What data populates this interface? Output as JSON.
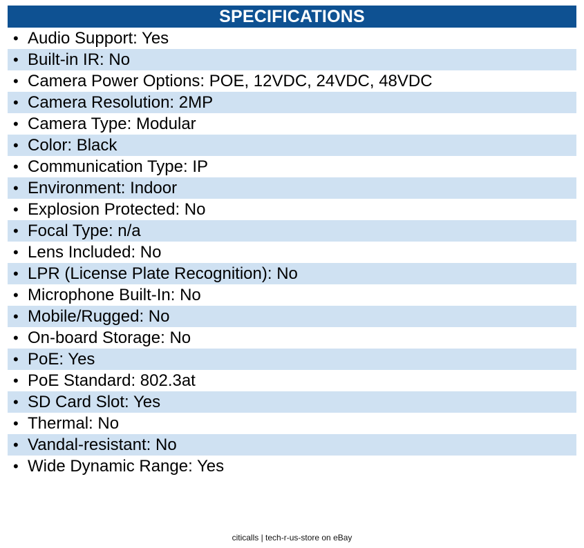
{
  "header": {
    "title": "SPECIFICATIONS"
  },
  "colors": {
    "header_bg": "#0e5192",
    "row_shade": "#cfe1f2",
    "row_plain": "#ffffff"
  },
  "specs": [
    "Audio Support: Yes",
    "Built-in IR: No",
    "Camera Power Options: POE, 12VDC, 24VDC, 48VDC",
    "Camera Resolution: 2MP",
    "Camera Type: Modular",
    "Color: Black",
    "Communication Type: IP",
    "Environment: Indoor",
    "Explosion Protected: No",
    "Focal Type: n/a",
    "Lens Included: No",
    "LPR (License Plate Recognition): No",
    "Microphone Built-In: No",
    "Mobile/Rugged: No",
    "On-board Storage: No",
    "PoE: Yes",
    "PoE Standard: 802.3at",
    "SD Card Slot: Yes",
    "Thermal: No",
    "Vandal-resistant: No",
    "Wide Dynamic Range: Yes"
  ],
  "bullet_glyph": "•",
  "footer": {
    "text": "citicalls | tech-r-us-store on eBay"
  }
}
